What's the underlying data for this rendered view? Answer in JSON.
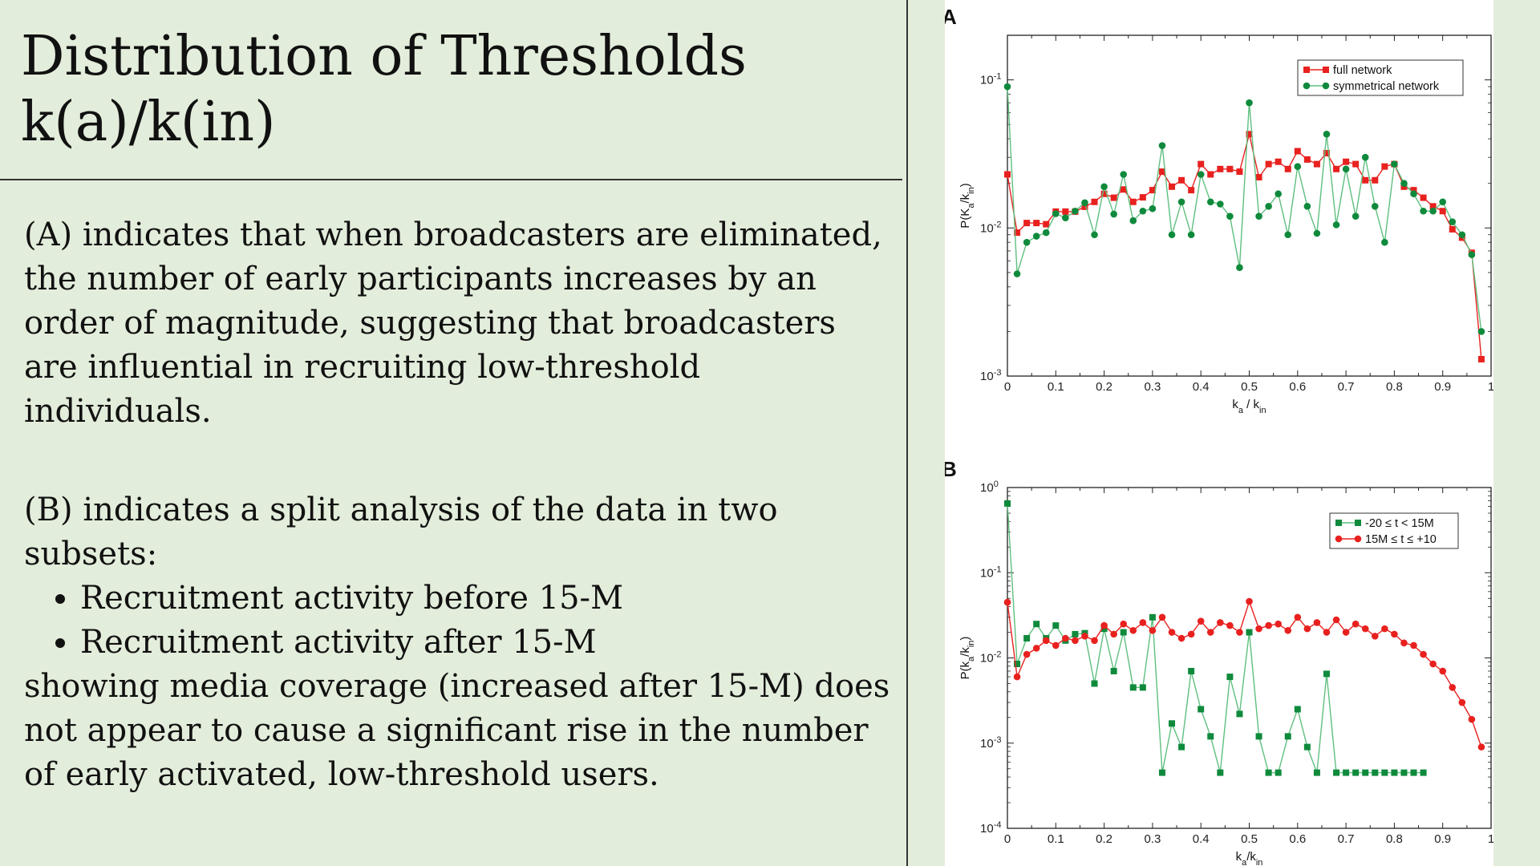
{
  "slide": {
    "title_line1": "Distribution of Thresholds",
    "title_line2": "k(a)/k(in)",
    "para_a": "(A) indicates that when broadcasters are eliminated, the number of early participants increases by an order of magnitude, suggesting that broadcasters are influential in recruiting low-threshold individuals.",
    "para_b_intro": "(B) indicates a split analysis of the data in two subsets:",
    "bullets": [
      "Recruitment activity before 15-M",
      "Recruitment activity after 15-M"
    ],
    "para_b_outro": "showing media coverage (increased after 15-M) does not appear to cause a significant rise in the number of early activated, low-threshold users."
  },
  "colors": {
    "background": "#e3eddb",
    "red_series": "#e8211f",
    "green_series": "#0f8a3c",
    "green_line": "#5fbf7f"
  },
  "chart_data": [
    {
      "panel": "A",
      "type": "line",
      "xlabel": "k_a / k_in",
      "ylabel": "P(K_a/k_in)",
      "xlim": [
        0,
        1
      ],
      "ylim": [
        0.001,
        0.2
      ],
      "yscale": "log",
      "x_ticks": [
        "0",
        "0.1",
        "0.2",
        "0.3",
        "0.4",
        "0.5",
        "0.6",
        "0.7",
        "0.8",
        "0.9",
        "1"
      ],
      "legend_position": "top-right",
      "series": [
        {
          "name": "full network",
          "marker": "square",
          "color": "#e8211f",
          "x": [
            0,
            0.02,
            0.04,
            0.06,
            0.08,
            0.1,
            0.12,
            0.14,
            0.16,
            0.18,
            0.2,
            0.22,
            0.24,
            0.26,
            0.28,
            0.3,
            0.32,
            0.34,
            0.36,
            0.38,
            0.4,
            0.42,
            0.44,
            0.46,
            0.48,
            0.5,
            0.52,
            0.54,
            0.56,
            0.58,
            0.6,
            0.62,
            0.64,
            0.66,
            0.68,
            0.7,
            0.72,
            0.74,
            0.76,
            0.78,
            0.8,
            0.82,
            0.84,
            0.86,
            0.88,
            0.9,
            0.92,
            0.94,
            0.96,
            0.98
          ],
          "y": [
            0.023,
            0.0093,
            0.0108,
            0.0108,
            0.0106,
            0.0129,
            0.0129,
            0.0129,
            0.0139,
            0.015,
            0.017,
            0.016,
            0.0182,
            0.015,
            0.0161,
            0.018,
            0.024,
            0.019,
            0.021,
            0.018,
            0.027,
            0.023,
            0.025,
            0.025,
            0.024,
            0.043,
            0.022,
            0.027,
            0.028,
            0.025,
            0.033,
            0.029,
            0.027,
            0.032,
            0.025,
            0.028,
            0.027,
            0.021,
            0.021,
            0.026,
            0.027,
            0.019,
            0.018,
            0.016,
            0.014,
            0.013,
            0.0098,
            0.0086,
            0.0068,
            0.0013
          ]
        },
        {
          "name": "symmetrical network",
          "marker": "circle",
          "color": "#0f8a3c",
          "x": [
            0,
            0.02,
            0.04,
            0.06,
            0.08,
            0.1,
            0.12,
            0.14,
            0.16,
            0.18,
            0.2,
            0.22,
            0.24,
            0.26,
            0.28,
            0.3,
            0.32,
            0.34,
            0.36,
            0.38,
            0.4,
            0.42,
            0.44,
            0.46,
            0.48,
            0.5,
            0.52,
            0.54,
            0.56,
            0.58,
            0.6,
            0.62,
            0.64,
            0.66,
            0.68,
            0.7,
            0.72,
            0.74,
            0.76,
            0.78,
            0.8,
            0.82,
            0.84,
            0.86,
            0.88,
            0.9,
            0.92,
            0.94,
            0.96,
            0.98
          ],
          "y": [
            0.09,
            0.0049,
            0.008,
            0.0088,
            0.0093,
            0.0125,
            0.0117,
            0.013,
            0.0148,
            0.009,
            0.019,
            0.0124,
            0.023,
            0.0112,
            0.013,
            0.0135,
            0.036,
            0.009,
            0.015,
            0.009,
            0.023,
            0.015,
            0.0145,
            0.012,
            0.0054,
            0.07,
            0.012,
            0.014,
            0.017,
            0.009,
            0.026,
            0.014,
            0.0092,
            0.043,
            0.0105,
            0.025,
            0.012,
            0.03,
            0.014,
            0.008,
            0.027,
            0.02,
            0.017,
            0.013,
            0.013,
            0.015,
            0.011,
            0.009,
            0.0066,
            0.002
          ]
        }
      ]
    },
    {
      "panel": "B",
      "type": "line",
      "xlabel": "k_a/k_in",
      "ylabel": "P(k_a/k_in)",
      "xlim": [
        0,
        1
      ],
      "ylim": [
        0.0001,
        1
      ],
      "yscale": "log",
      "x_ticks": [
        "0",
        "0.1",
        "0.2",
        "0.3",
        "0.4",
        "0.5",
        "0.6",
        "0.7",
        "0.8",
        "0.9",
        "1"
      ],
      "legend_position": "top-right",
      "series": [
        {
          "name": "-20 ≤ t < 15M",
          "marker": "square",
          "color": "#0f8a3c",
          "x": [
            0,
            0.02,
            0.04,
            0.06,
            0.08,
            0.1,
            0.12,
            0.14,
            0.16,
            0.18,
            0.2,
            0.22,
            0.24,
            0.26,
            0.28,
            0.3,
            0.32,
            0.34,
            0.36,
            0.38,
            0.4,
            0.42,
            0.44,
            0.46,
            0.48,
            0.5,
            0.52,
            0.54,
            0.56,
            0.58,
            0.6,
            0.62,
            0.64,
            0.66,
            0.68,
            0.7,
            0.72,
            0.74,
            0.76,
            0.78,
            0.8,
            0.82,
            0.84,
            0.86
          ],
          "y": [
            0.65,
            0.0085,
            0.017,
            0.025,
            0.017,
            0.024,
            0.016,
            0.019,
            0.0195,
            0.005,
            0.022,
            0.007,
            0.02,
            0.0045,
            0.0045,
            0.03,
            0.00045,
            0.0017,
            0.0009,
            0.007,
            0.0025,
            0.0012,
            0.00045,
            0.006,
            0.0022,
            0.02,
            0.0012,
            0.00045,
            0.00045,
            0.0012,
            0.0025,
            0.0009,
            0.00045,
            0.0065,
            0.00045,
            0.00045,
            0.00045,
            0.00045,
            0.00045,
            0.00045,
            0.00045,
            0.00045,
            0.00045,
            0.00045
          ]
        },
        {
          "name": "15M ≤ t ≤ +10",
          "marker": "circle",
          "color": "#e8211f",
          "x": [
            0,
            0.02,
            0.04,
            0.06,
            0.08,
            0.1,
            0.12,
            0.14,
            0.16,
            0.18,
            0.2,
            0.22,
            0.24,
            0.26,
            0.28,
            0.3,
            0.32,
            0.34,
            0.36,
            0.38,
            0.4,
            0.42,
            0.44,
            0.46,
            0.48,
            0.5,
            0.52,
            0.54,
            0.56,
            0.58,
            0.6,
            0.62,
            0.64,
            0.66,
            0.68,
            0.7,
            0.72,
            0.74,
            0.76,
            0.78,
            0.8,
            0.82,
            0.84,
            0.86,
            0.88,
            0.9,
            0.92,
            0.94,
            0.96,
            0.98
          ],
          "y": [
            0.045,
            0.006,
            0.011,
            0.013,
            0.016,
            0.014,
            0.017,
            0.016,
            0.018,
            0.016,
            0.024,
            0.019,
            0.025,
            0.021,
            0.026,
            0.021,
            0.03,
            0.02,
            0.017,
            0.019,
            0.027,
            0.02,
            0.026,
            0.024,
            0.02,
            0.046,
            0.022,
            0.024,
            0.025,
            0.021,
            0.03,
            0.022,
            0.026,
            0.02,
            0.028,
            0.02,
            0.025,
            0.022,
            0.018,
            0.022,
            0.019,
            0.015,
            0.014,
            0.011,
            0.0085,
            0.007,
            0.0045,
            0.003,
            0.0019,
            0.0009
          ]
        }
      ]
    }
  ]
}
